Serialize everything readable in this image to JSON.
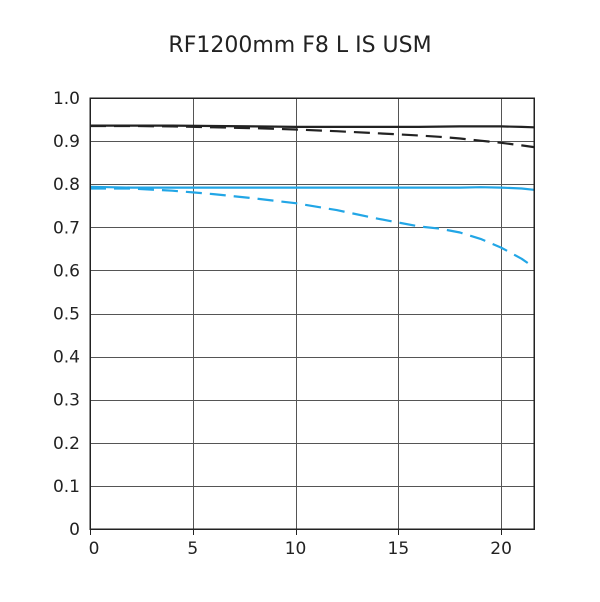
{
  "chart_data": {
    "type": "line",
    "title": "RF1200mm F8 L IS USM",
    "xlabel": "",
    "ylabel": "",
    "xlim": [
      0,
      21.6
    ],
    "ylim": [
      0,
      1.0
    ],
    "x_ticks": [
      0,
      5,
      10,
      15,
      20
    ],
    "y_ticks": [
      0,
      0.1,
      0.2,
      0.3,
      0.4,
      0.5,
      0.6,
      0.7,
      0.8,
      0.9,
      1.0
    ],
    "y_tick_labels": [
      "0",
      "0.1",
      "0.2",
      "0.3",
      "0.4",
      "0.5",
      "0.6",
      "0.7",
      "0.8",
      "0.9",
      "1.0"
    ],
    "grid": true,
    "legend": "none",
    "series": [
      {
        "color": "#222222",
        "dash": "solid",
        "x": [
          0,
          2,
          4,
          6,
          8,
          10,
          12,
          14,
          16,
          18,
          19,
          20,
          21,
          21.6
        ],
        "y": [
          0.936,
          0.936,
          0.936,
          0.935,
          0.934,
          0.933,
          0.933,
          0.933,
          0.933,
          0.934,
          0.934,
          0.934,
          0.933,
          0.932
        ]
      },
      {
        "color": "#222222",
        "dash": "dashed",
        "x": [
          0,
          2,
          4,
          6,
          8,
          10,
          12,
          14,
          16,
          17,
          18,
          19,
          20,
          21,
          21.6
        ],
        "y": [
          0.935,
          0.935,
          0.934,
          0.932,
          0.93,
          0.927,
          0.923,
          0.918,
          0.913,
          0.91,
          0.906,
          0.901,
          0.896,
          0.89,
          0.886
        ]
      },
      {
        "color": "#22a6e6",
        "dash": "solid",
        "x": [
          0,
          2,
          4,
          6,
          8,
          10,
          12,
          14,
          16,
          18,
          19,
          20,
          21,
          21.6
        ],
        "y": [
          0.794,
          0.792,
          0.792,
          0.792,
          0.792,
          0.792,
          0.792,
          0.792,
          0.792,
          0.792,
          0.793,
          0.792,
          0.79,
          0.787
        ]
      },
      {
        "color": "#22a6e6",
        "dash": "dashed",
        "x": [
          0,
          2,
          4,
          6,
          8,
          10,
          12,
          14,
          16,
          17,
          18,
          19,
          20,
          21,
          21.6
        ],
        "y": [
          0.79,
          0.79,
          0.785,
          0.777,
          0.767,
          0.756,
          0.74,
          0.72,
          0.702,
          0.697,
          0.688,
          0.673,
          0.653,
          0.627,
          0.607
        ]
      }
    ]
  }
}
